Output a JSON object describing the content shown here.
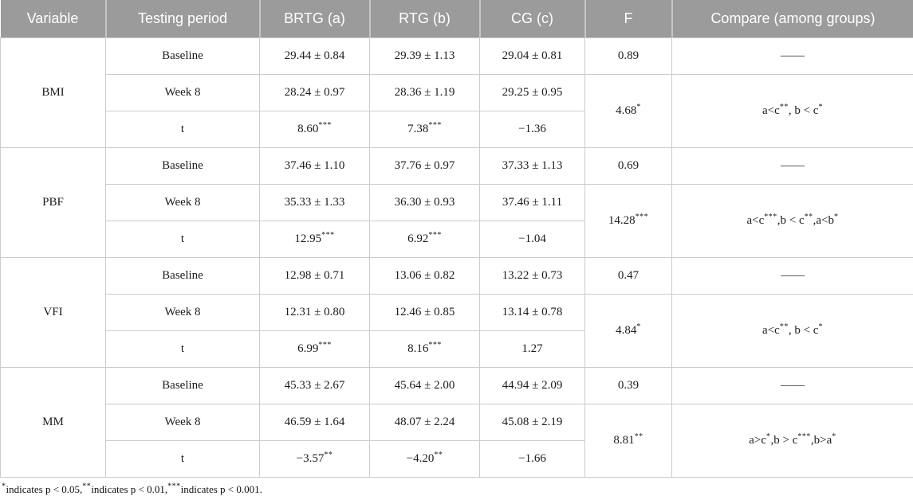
{
  "colors": {
    "header_bg": "#9b9b9b",
    "header_text": "#ffffff",
    "border": "#cccccc",
    "body_text": "#1c1c1c"
  },
  "table": {
    "columns": [
      "Variable",
      "Testing period",
      "BRTG (a)",
      "RTG (b)",
      "CG (c)",
      "F",
      "Compare (among groups)"
    ],
    "groups": [
      {
        "variable": "BMI",
        "rows": [
          {
            "period": "Baseline",
            "brtg": "29.44 ± 0.84",
            "rtg": "29.39 ± 1.13",
            "cg": "29.04 ± 0.81"
          },
          {
            "period": "Week 8",
            "brtg": "28.24 ± 0.97",
            "rtg": "28.36 ± 1.19",
            "cg": "29.25 ± 0.95"
          },
          {
            "period": "t",
            "brtg": "8.60***",
            "rtg": "7.38***",
            "cg": "−1.36"
          }
        ],
        "f_baseline": "0.89",
        "compare_baseline": "——",
        "f_week8": "4.68*",
        "compare_week8": "a<c**, b < c*"
      },
      {
        "variable": "PBF",
        "rows": [
          {
            "period": "Baseline",
            "brtg": "37.46 ± 1.10",
            "rtg": "37.76 ± 0.97",
            "cg": "37.33 ± 1.13"
          },
          {
            "period": "Week 8",
            "brtg": "35.33 ± 1.33",
            "rtg": "36.30 ± 0.93",
            "cg": "37.46 ± 1.11"
          },
          {
            "period": "t",
            "brtg": "12.95***",
            "rtg": "6.92***",
            "cg": "−1.04"
          }
        ],
        "f_baseline": "0.69",
        "compare_baseline": "——",
        "f_week8": "14.28***",
        "compare_week8": "a<c***,b < c**,a<b*"
      },
      {
        "variable": "VFI",
        "rows": [
          {
            "period": "Baseline",
            "brtg": "12.98 ± 0.71",
            "rtg": "13.06 ± 0.82",
            "cg": "13.22 ± 0.73"
          },
          {
            "period": "Week 8",
            "brtg": "12.31 ± 0.80",
            "rtg": "12.46 ± 0.85",
            "cg": "13.14 ± 0.78"
          },
          {
            "period": "t",
            "brtg": "6.99***",
            "rtg": "8.16***",
            "cg": "1.27"
          }
        ],
        "f_baseline": "0.47",
        "compare_baseline": "——",
        "f_week8": "4.84*",
        "compare_week8": "a<c**, b < c*"
      },
      {
        "variable": "MM",
        "rows": [
          {
            "period": "Baseline",
            "brtg": "45.33 ± 2.67",
            "rtg": "45.64 ± 2.00",
            "cg": "44.94 ± 2.09"
          },
          {
            "period": "Week 8",
            "brtg": "46.59 ± 1.64",
            "rtg": "48.07 ± 2.24",
            "cg": "45.08 ± 2.19"
          },
          {
            "period": "t",
            "brtg": "−3.57**",
            "rtg": "−4.20**",
            "cg": "−1.66"
          }
        ],
        "f_baseline": "0.39",
        "compare_baseline": "——",
        "f_week8": "8.81**",
        "compare_week8": "a>c*,b > c***,b>a*"
      }
    ],
    "footnote": "*indicates p < 0.05,**indicates p < 0.01,***indicates p < 0.001."
  }
}
